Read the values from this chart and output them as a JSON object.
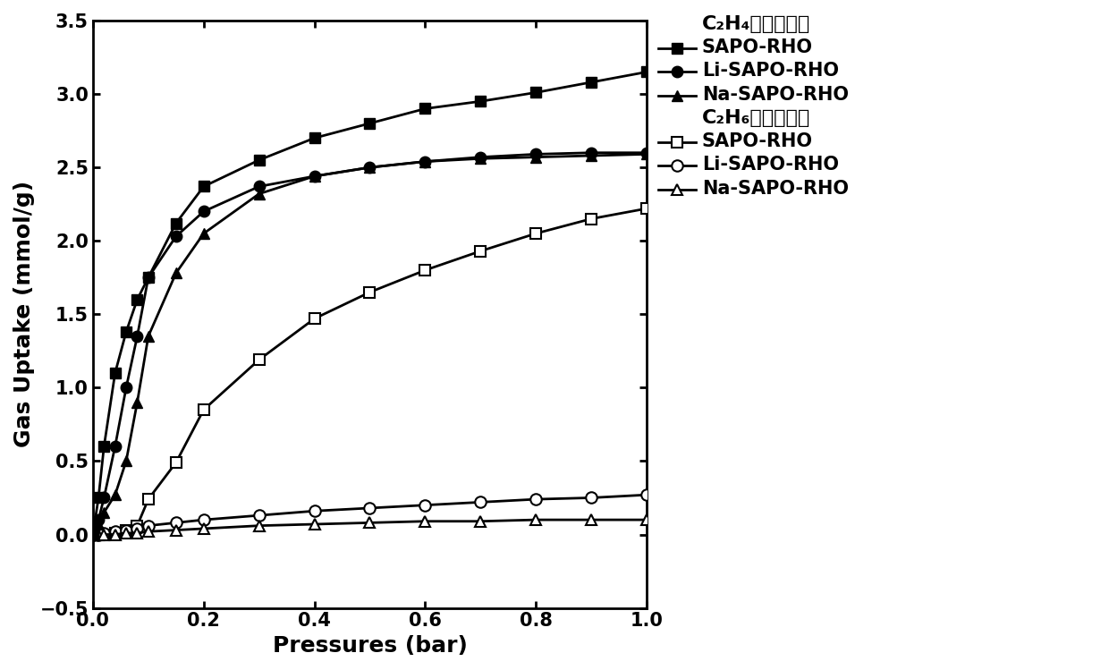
{
  "xlabel": "Pressures (bar)",
  "ylabel": "Gas Uptake (mmol/g)",
  "xlim": [
    0,
    1.0
  ],
  "ylim": [
    -0.5,
    3.5
  ],
  "xticks": [
    0.0,
    0.2,
    0.4,
    0.6,
    0.8,
    1.0
  ],
  "yticks": [
    -0.5,
    0.0,
    0.5,
    1.0,
    1.5,
    2.0,
    2.5,
    3.0,
    3.5
  ],
  "C2H4_SAPO_x": [
    0.0,
    0.01,
    0.02,
    0.04,
    0.06,
    0.08,
    0.1,
    0.15,
    0.2,
    0.3,
    0.4,
    0.5,
    0.6,
    0.7,
    0.8,
    0.9,
    1.0
  ],
  "C2H4_SAPO_y": [
    0.0,
    0.25,
    0.6,
    1.1,
    1.38,
    1.6,
    1.75,
    2.12,
    2.37,
    2.55,
    2.7,
    2.8,
    2.9,
    2.95,
    3.01,
    3.08,
    3.15
  ],
  "C2H4_Li_x": [
    0.0,
    0.01,
    0.02,
    0.04,
    0.06,
    0.08,
    0.1,
    0.15,
    0.2,
    0.3,
    0.4,
    0.5,
    0.6,
    0.7,
    0.8,
    0.9,
    1.0
  ],
  "C2H4_Li_y": [
    0.0,
    0.1,
    0.25,
    0.6,
    1.0,
    1.35,
    1.75,
    2.03,
    2.2,
    2.37,
    2.44,
    2.5,
    2.54,
    2.57,
    2.59,
    2.6,
    2.6
  ],
  "C2H4_Na_x": [
    0.0,
    0.01,
    0.02,
    0.04,
    0.06,
    0.08,
    0.1,
    0.15,
    0.2,
    0.3,
    0.4,
    0.5,
    0.6,
    0.7,
    0.8,
    0.9,
    1.0
  ],
  "C2H4_Na_y": [
    0.0,
    0.07,
    0.15,
    0.27,
    0.5,
    0.9,
    1.35,
    1.78,
    2.05,
    2.32,
    2.44,
    2.5,
    2.54,
    2.56,
    2.57,
    2.58,
    2.59
  ],
  "C2H6_SAPO_x": [
    0.0,
    0.01,
    0.02,
    0.04,
    0.06,
    0.08,
    0.1,
    0.15,
    0.2,
    0.3,
    0.4,
    0.5,
    0.6,
    0.7,
    0.8,
    0.9,
    1.0
  ],
  "C2H6_SAPO_y": [
    0.0,
    0.0,
    0.0,
    0.01,
    0.03,
    0.06,
    0.24,
    0.49,
    0.85,
    1.19,
    1.47,
    1.65,
    1.8,
    1.93,
    2.05,
    2.15,
    2.22
  ],
  "C2H6_Li_x": [
    0.0,
    0.01,
    0.02,
    0.04,
    0.06,
    0.08,
    0.1,
    0.15,
    0.2,
    0.3,
    0.4,
    0.5,
    0.6,
    0.7,
    0.8,
    0.9,
    1.0
  ],
  "C2H6_Li_y": [
    0.0,
    0.0,
    0.01,
    0.02,
    0.03,
    0.04,
    0.06,
    0.08,
    0.1,
    0.13,
    0.16,
    0.18,
    0.2,
    0.22,
    0.24,
    0.25,
    0.27
  ],
  "C2H6_Na_x": [
    0.0,
    0.01,
    0.02,
    0.04,
    0.06,
    0.08,
    0.1,
    0.15,
    0.2,
    0.3,
    0.4,
    0.5,
    0.6,
    0.7,
    0.8,
    0.9,
    1.0
  ],
  "C2H6_Na_y": [
    0.0,
    0.0,
    0.0,
    0.0,
    0.01,
    0.01,
    0.02,
    0.03,
    0.04,
    0.06,
    0.07,
    0.08,
    0.09,
    0.09,
    0.1,
    0.1,
    0.1
  ],
  "legend_c2h4_title": "C₂H₄吸附等温线",
  "legend_c2h6_title": "C₂H₆吸附等温线",
  "legend_sapo": "SAPO-RHO",
  "legend_li": "Li-SAPO-RHO",
  "legend_na": "Na-SAPO-RHO"
}
